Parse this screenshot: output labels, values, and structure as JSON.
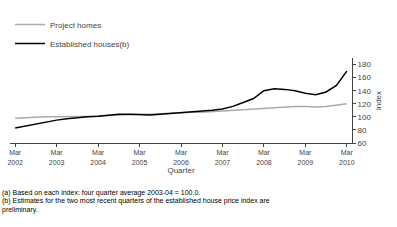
{
  "chart_data": {
    "type": "line",
    "xlabel": "Quarter",
    "ylabel": "index",
    "categories": [
      "Mar\n2002",
      null,
      null,
      null,
      "Mar\n2003",
      null,
      null,
      null,
      "Mar\n2004",
      null,
      null,
      null,
      "Mar\n2005",
      null,
      null,
      null,
      "Mar\n2006",
      null,
      null,
      null,
      "Mar\n2007",
      null,
      null,
      null,
      "Mar\n2008",
      null,
      null,
      null,
      "Mar\n2009",
      null,
      null,
      null,
      "Mar\n2010"
    ],
    "series": [
      {
        "name": "Project homes",
        "color": "#aaaaaa",
        "values": [
          98,
          99,
          99,
          100,
          100,
          100,
          100,
          100,
          101,
          102,
          103,
          103,
          104,
          104,
          105,
          106,
          106,
          107,
          107,
          108,
          109,
          110,
          111,
          112,
          114,
          115,
          116,
          116,
          116,
          115,
          116,
          118,
          120
        ]
      },
      {
        "name": "Established houses(b)",
        "color": "#000000",
        "values": [
          83,
          86,
          90,
          93,
          95,
          97,
          99,
          100,
          101,
          103,
          104,
          104,
          103,
          103,
          104,
          105,
          106,
          107,
          108,
          110,
          112,
          116,
          122,
          128,
          140,
          143,
          142,
          140,
          136,
          134,
          138,
          148,
          170
        ]
      }
    ],
    "ylim": [
      60,
      190
    ],
    "yticks": [
      60,
      80,
      100,
      120,
      140,
      160,
      180
    ],
    "grid": false,
    "legend": "upper left",
    "annotations": [
      "(a) Based on each index: four quarter average 2003-04 = 100.0.",
      "(b) Estimates for the two most recent quarters of the established house price index are\npreliminary."
    ]
  }
}
